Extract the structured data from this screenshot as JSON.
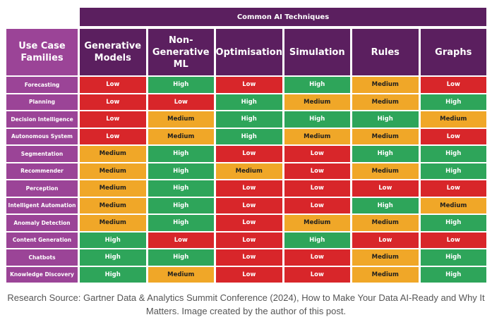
{
  "chart_data": {
    "type": "table",
    "title": "Common AI Techniques",
    "corner_label": "Use Case Families",
    "columns": [
      "Generative Models",
      "Non-Generative ML",
      "Optimisation",
      "Simulation",
      "Rules",
      "Graphs"
    ],
    "rows": [
      {
        "label": "Forecasting",
        "values": [
          "Low",
          "High",
          "Low",
          "High",
          "Medium",
          "Low"
        ]
      },
      {
        "label": "Planning",
        "values": [
          "Low",
          "Low",
          "High",
          "Medium",
          "Medium",
          "High"
        ]
      },
      {
        "label": "Decision Intelligence",
        "values": [
          "Low",
          "Medium",
          "High",
          "High",
          "High",
          "Medium"
        ]
      },
      {
        "label": "Autonomous System",
        "values": [
          "Low",
          "Medium",
          "High",
          "Medium",
          "Medium",
          "Low"
        ]
      },
      {
        "label": "Segmentation",
        "values": [
          "Medium",
          "High",
          "Low",
          "Low",
          "High",
          "High"
        ]
      },
      {
        "label": "Recommender",
        "values": [
          "Medium",
          "High",
          "Medium",
          "Low",
          "Medium",
          "High"
        ]
      },
      {
        "label": "Perception",
        "values": [
          "Medium",
          "High",
          "Low",
          "Low",
          "Low",
          "Low"
        ]
      },
      {
        "label": "Intelligent Automation",
        "values": [
          "Medium",
          "High",
          "Low",
          "Low",
          "High",
          "Medium"
        ]
      },
      {
        "label": "Anomaly Detection",
        "values": [
          "Medium",
          "High",
          "Low",
          "Medium",
          "Medium",
          "High"
        ]
      },
      {
        "label": "Content Generation",
        "values": [
          "High",
          "Low",
          "Low",
          "High",
          "Low",
          "Low"
        ]
      },
      {
        "label": "Chatbots",
        "values": [
          "High",
          "High",
          "Low",
          "Low",
          "Medium",
          "High"
        ]
      },
      {
        "label": "Knowledge Discovery",
        "values": [
          "High",
          "Medium",
          "Low",
          "Low",
          "Medium",
          "High"
        ]
      }
    ],
    "level_colors": {
      "Low": "#d8262a",
      "Medium": "#f0a728",
      "High": "#2ea55a"
    }
  },
  "caption": "Research Source: Gartner Data & Analytics Summit Conference (2024), How to Make Your Data AI-Ready and Why It Matters. Image created by the author of this post."
}
